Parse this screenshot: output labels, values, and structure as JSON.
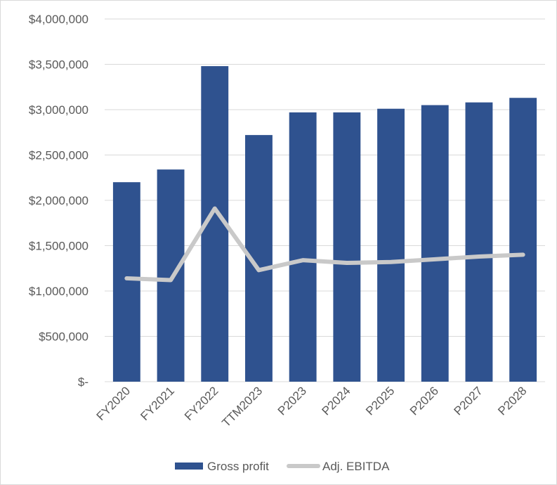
{
  "chart_data": {
    "type": "bar",
    "categories": [
      "FY2020",
      "FY2021",
      "FY2022",
      "TTM2023",
      "P2023",
      "P2024",
      "P2025",
      "P2026",
      "P2027",
      "P2028"
    ],
    "series": [
      {
        "name": "Gross profit",
        "type": "bar",
        "color": "#2f528f",
        "values": [
          2200000,
          2340000,
          3480000,
          2720000,
          2970000,
          2970000,
          3010000,
          3050000,
          3080000,
          3130000
        ]
      },
      {
        "name": "Adj. EBITDA",
        "type": "line",
        "color": "#c9c9c9",
        "values": [
          1140000,
          1120000,
          1910000,
          1230000,
          1340000,
          1310000,
          1320000,
          1350000,
          1380000,
          1400000
        ]
      }
    ],
    "yticks": [
      "$-",
      "$500,000",
      "$1,000,000",
      "$1,500,000",
      "$2,000,000",
      "$2,500,000",
      "$3,000,000",
      "$3,500,000",
      "$4,000,000"
    ],
    "ytick_values": [
      0,
      500000,
      1000000,
      1500000,
      2000000,
      2500000,
      3000000,
      3500000,
      4000000
    ],
    "ylim": [
      0,
      4000000
    ],
    "grid": true,
    "legend_position": "bottom",
    "title": "",
    "xlabel": "",
    "ylabel": ""
  }
}
